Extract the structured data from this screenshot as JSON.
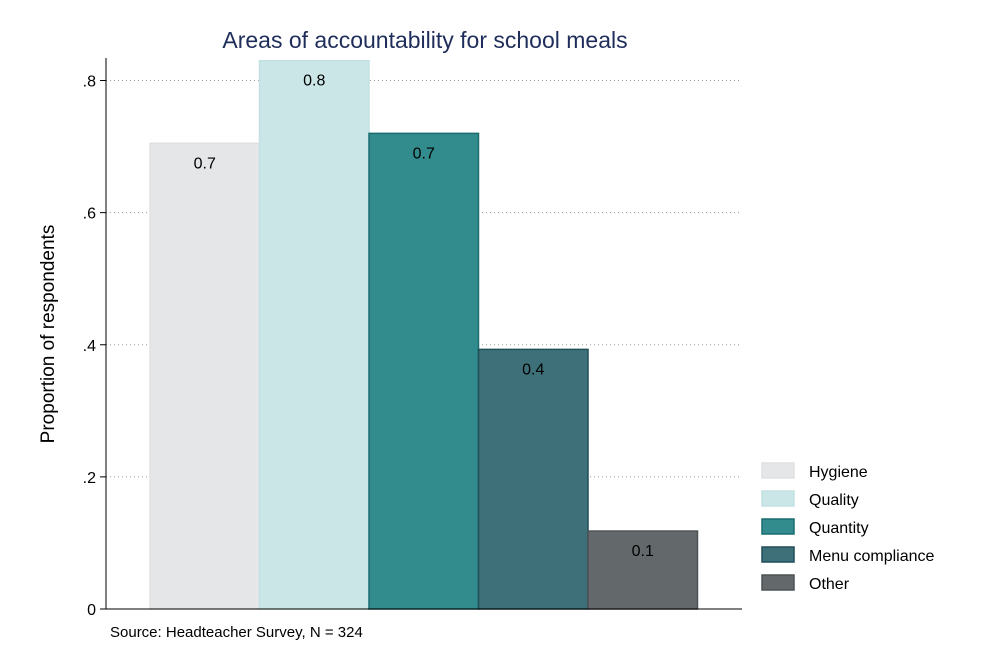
{
  "chart_data": {
    "type": "bar",
    "title": "Areas of accountability for school meals",
    "ylabel": "Proportion of respondents",
    "xlabel": "",
    "ylim": [
      0,
      0.85
    ],
    "yticks": [
      {
        "value": 0,
        "label": "0"
      },
      {
        "value": 0.2,
        "label": ".2"
      },
      {
        "value": 0.4,
        "label": ".4"
      },
      {
        "value": 0.6,
        "label": ".6"
      },
      {
        "value": 0.8,
        "label": ".8"
      }
    ],
    "grid": true,
    "legend_position": "right-bottom",
    "categories": [
      "Hygiene",
      "Quality",
      "Quantity",
      "Menu compliance",
      "Other"
    ],
    "values": [
      0.705,
      0.83,
      0.72,
      0.393,
      0.118
    ],
    "data_labels": [
      "0.7",
      "0.8",
      "0.7",
      "0.4",
      "0.1"
    ],
    "colors": [
      "#e5e6e8",
      "#cbe6e7",
      "#328b8c",
      "#3e7079",
      "#63696b"
    ],
    "edge_colors": [
      "#e0e1e3",
      "#c3e0e2",
      "#1a6c70",
      "#214e58",
      "#4d5355"
    ],
    "note": "Source: Headteacher Survey, N = 324"
  }
}
